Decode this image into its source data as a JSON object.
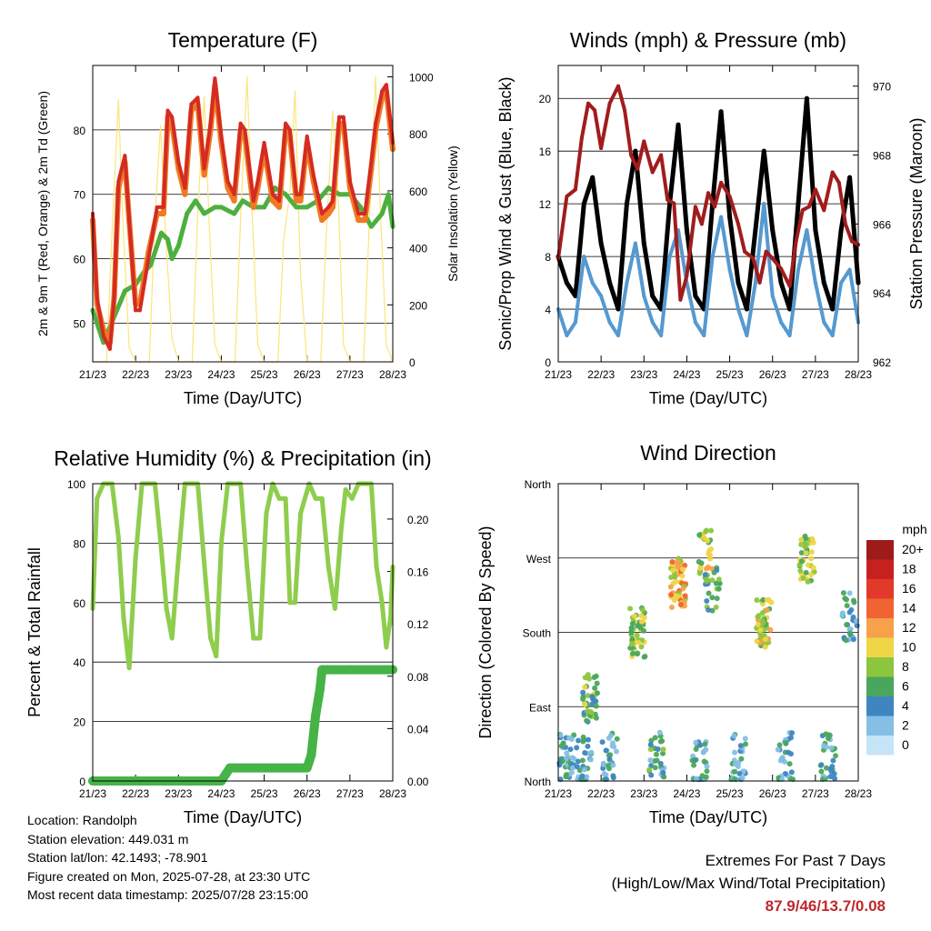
{
  "colors": {
    "temp_2m": "#d42b23",
    "temp_9m": "#f07a22",
    "dewpoint": "#4daf3e",
    "solar": "#fbe57a",
    "wind_sonic": "#5599d0",
    "gust": "#000000",
    "pressure": "#a11c1c",
    "rh": "#8fcd4d",
    "precip": "#46b346",
    "extremes_value": "#c0282d"
  },
  "chart_data": [
    {
      "type": "line",
      "title": "Temperature (F)",
      "xlabel": "Time (Day/UTC)",
      "ylabel": "2m & 9m T (Red, Orange) & 2m Td (Green)",
      "y2label": "Solar Insolation (Yellow)",
      "x_ticks": [
        "21/23",
        "22/23",
        "23/23",
        "24/23",
        "25/23",
        "26/23",
        "27/23",
        "28/23"
      ],
      "ylim": [
        44,
        90
      ],
      "y_ticks": [
        50,
        60,
        70,
        80
      ],
      "y2lim": [
        0,
        1040
      ],
      "y2_ticks": [
        0,
        200,
        400,
        600,
        800,
        1000
      ],
      "grid": "horizontal",
      "series": [
        {
          "key": "temp_2m",
          "color": "#d42b23",
          "x": [
            0,
            0.1,
            0.25,
            0.4,
            0.5,
            0.6,
            0.75,
            0.85,
            1.0,
            1.1,
            1.3,
            1.5,
            1.65,
            1.75,
            1.85,
            2.0,
            2.15,
            2.3,
            2.45,
            2.6,
            2.75,
            2.85,
            3.0,
            3.15,
            3.3,
            3.45,
            3.55,
            3.75,
            3.85,
            4.0,
            4.2,
            4.35,
            4.5,
            4.6,
            4.75,
            4.85,
            5.0,
            5.15,
            5.35,
            5.5,
            5.6,
            5.75,
            5.85,
            6.0,
            6.2,
            6.35,
            6.5,
            6.6,
            6.75,
            6.85,
            7.0
          ],
          "y": [
            67,
            54,
            48,
            46,
            54,
            72,
            76,
            66,
            52,
            52,
            60,
            68,
            68,
            83,
            82,
            75,
            71,
            84,
            85,
            74,
            81,
            88,
            79,
            72,
            70,
            81,
            80,
            69,
            72,
            78,
            70,
            69,
            81,
            80,
            70,
            70,
            79,
            73,
            67,
            68,
            69,
            82,
            82,
            72,
            67,
            67,
            75,
            81,
            86,
            87,
            78
          ]
        },
        {
          "key": "temp_9m",
          "color": "#f07a22",
          "x": [
            0,
            0.1,
            0.25,
            0.4,
            0.5,
            0.6,
            0.75,
            0.85,
            1.0,
            1.1,
            1.3,
            1.5,
            1.65,
            1.75,
            1.85,
            2.0,
            2.15,
            2.3,
            2.45,
            2.6,
            2.75,
            2.85,
            3.0,
            3.15,
            3.3,
            3.45,
            3.55,
            3.75,
            3.85,
            4.0,
            4.2,
            4.35,
            4.5,
            4.6,
            4.75,
            4.85,
            5.0,
            5.15,
            5.35,
            5.5,
            5.6,
            5.75,
            5.85,
            6.0,
            6.2,
            6.35,
            6.5,
            6.6,
            6.75,
            6.85,
            7.0
          ],
          "y": [
            66,
            53,
            49,
            47,
            54,
            71,
            75,
            66,
            53,
            53,
            61,
            67,
            67,
            82,
            81,
            74,
            70,
            83,
            84,
            73,
            80,
            87,
            78,
            71,
            69,
            80,
            79,
            68,
            71,
            77,
            69,
            68,
            80,
            79,
            69,
            69,
            78,
            72,
            66,
            67,
            68,
            81,
            81,
            71,
            66,
            66,
            74,
            80,
            85,
            86,
            77
          ]
        },
        {
          "key": "dewpoint",
          "color": "#4daf3e",
          "x": [
            0,
            0.25,
            0.5,
            0.75,
            1.0,
            1.2,
            1.35,
            1.6,
            1.75,
            1.85,
            2.0,
            2.2,
            2.4,
            2.6,
            2.85,
            3.0,
            3.3,
            3.5,
            3.75,
            4.0,
            4.25,
            4.5,
            4.75,
            5.0,
            5.25,
            5.5,
            5.75,
            6.0,
            6.25,
            6.5,
            6.75,
            6.9,
            7.0
          ],
          "y": [
            52,
            47,
            51,
            55,
            56,
            58,
            59,
            64,
            63,
            60,
            62,
            67,
            69,
            67,
            68,
            68,
            67,
            69,
            68,
            68,
            71,
            70,
            68,
            68,
            69,
            71,
            70,
            70,
            68,
            65,
            67,
            70,
            65
          ]
        },
        {
          "key": "solar",
          "color": "#fbe57a",
          "axis": "y2",
          "x": [
            0,
            0.32,
            0.45,
            0.6,
            0.7,
            0.85,
            1.0,
            1.32,
            1.45,
            1.58,
            1.7,
            1.85,
            2.0,
            2.32,
            2.45,
            2.6,
            2.72,
            2.85,
            3.0,
            3.32,
            3.45,
            3.6,
            3.72,
            3.85,
            4.0,
            4.32,
            4.45,
            4.6,
            4.72,
            4.85,
            5.0,
            5.32,
            5.45,
            5.6,
            5.72,
            5.85,
            6.0,
            6.32,
            6.45,
            6.6,
            6.72,
            6.85,
            7.0
          ],
          "y": [
            0,
            0,
            450,
            920,
            500,
            50,
            0,
            0,
            500,
            830,
            450,
            80,
            0,
            0,
            520,
            930,
            480,
            60,
            0,
            0,
            500,
            1000,
            520,
            60,
            0,
            0,
            420,
            600,
            950,
            300,
            0,
            0,
            450,
            880,
            600,
            60,
            0,
            0,
            480,
            1000,
            500,
            60,
            0
          ]
        }
      ]
    },
    {
      "type": "line",
      "title": "Winds (mph) & Pressure (mb)",
      "xlabel": "Time (Day/UTC)",
      "ylabel": "Sonic/Prop Wind & Gust (Blue, Black)",
      "y2label": "Station Pressure (Maroon)",
      "x_ticks": [
        "21/23",
        "22/23",
        "23/23",
        "24/23",
        "25/23",
        "26/23",
        "27/23",
        "28/23"
      ],
      "ylim": [
        0,
        22.5
      ],
      "y_ticks": [
        0,
        4,
        8,
        12,
        16,
        20
      ],
      "y2lim": [
        962,
        970.6
      ],
      "y2_ticks": [
        962,
        964,
        966,
        968,
        970
      ],
      "grid": "horizontal",
      "series": [
        {
          "key": "wind_sonic",
          "color": "#5599d0",
          "x": [
            0,
            0.2,
            0.4,
            0.6,
            0.8,
            1.0,
            1.2,
            1.4,
            1.6,
            1.8,
            2.0,
            2.2,
            2.4,
            2.6,
            2.8,
            3.0,
            3.2,
            3.4,
            3.6,
            3.8,
            4.0,
            4.2,
            4.4,
            4.6,
            4.8,
            5.0,
            5.2,
            5.4,
            5.6,
            5.8,
            6.0,
            6.2,
            6.4,
            6.6,
            6.8,
            7.0
          ],
          "y": [
            4,
            2,
            3,
            8,
            6,
            5,
            3,
            2,
            6,
            9,
            5,
            3,
            2,
            8,
            10,
            6,
            3,
            2,
            8,
            11,
            7,
            4,
            2,
            6,
            12,
            5,
            3,
            2,
            7,
            10,
            6,
            3,
            2,
            6,
            7,
            3
          ]
        },
        {
          "key": "gust",
          "color": "#000000",
          "x": [
            0,
            0.2,
            0.4,
            0.6,
            0.8,
            1.0,
            1.2,
            1.4,
            1.6,
            1.8,
            2.0,
            2.2,
            2.4,
            2.6,
            2.8,
            3.0,
            3.2,
            3.4,
            3.6,
            3.8,
            4.0,
            4.2,
            4.4,
            4.6,
            4.8,
            5.0,
            5.2,
            5.4,
            5.6,
            5.8,
            6.0,
            6.2,
            6.4,
            6.6,
            6.8,
            7.0
          ],
          "y": [
            8,
            6,
            5,
            12,
            14,
            9,
            6,
            4,
            12,
            16,
            9,
            5,
            4,
            12,
            18,
            10,
            5,
            4,
            12,
            19,
            11,
            6,
            4,
            10,
            16,
            10,
            6,
            4,
            12,
            20,
            10,
            6,
            4,
            10,
            14,
            6
          ]
        },
        {
          "key": "pressure",
          "color": "#a11c1c",
          "axis": "y2",
          "x": [
            0,
            0.2,
            0.4,
            0.55,
            0.7,
            0.85,
            1.0,
            1.2,
            1.4,
            1.55,
            1.7,
            1.85,
            2.0,
            2.2,
            2.4,
            2.55,
            2.7,
            2.85,
            3.0,
            3.2,
            3.35,
            3.5,
            3.65,
            3.8,
            4.0,
            4.2,
            4.35,
            4.55,
            4.7,
            4.85,
            5.0,
            5.2,
            5.4,
            5.55,
            5.7,
            5.85,
            6.0,
            6.2,
            6.4,
            6.55,
            6.7,
            6.85,
            7.0
          ],
          "y": [
            965,
            966.8,
            967,
            968.5,
            969.5,
            969.3,
            968.2,
            969.5,
            970,
            969.3,
            968,
            967.6,
            968.4,
            967.5,
            968,
            966.7,
            966.6,
            963.8,
            964.5,
            966.5,
            966,
            966.9,
            966.5,
            967.2,
            966.8,
            966,
            965.2,
            965,
            964.3,
            965.2,
            965,
            964.7,
            964.2,
            965.5,
            966.4,
            966.5,
            967,
            966.4,
            967.5,
            967.2,
            966,
            965.5,
            965.4
          ]
        }
      ]
    },
    {
      "type": "line",
      "title": "Relative Humidity (%) & Precipitation (in)",
      "xlabel": "Time (Day/UTC)",
      "ylabel": "Percent & Total Rainfall",
      "x_ticks": [
        "21/23",
        "22/23",
        "23/23",
        "24/23",
        "25/23",
        "26/23",
        "27/23",
        "28/23"
      ],
      "ylim": [
        0,
        100
      ],
      "y_ticks": [
        0,
        20,
        40,
        60,
        80,
        100
      ],
      "y2lim": [
        0,
        0.227
      ],
      "y2_ticks": [
        "0.00",
        "0.04",
        "0.08",
        "0.12",
        "0.16",
        "0.20"
      ],
      "grid": "horizontal",
      "series": [
        {
          "key": "rh",
          "color": "#8fcd4d",
          "x": [
            0,
            0.1,
            0.25,
            0.45,
            0.6,
            0.72,
            0.85,
            1.0,
            1.15,
            1.3,
            1.45,
            1.6,
            1.72,
            1.85,
            2.0,
            2.15,
            2.3,
            2.45,
            2.62,
            2.75,
            2.88,
            3.0,
            3.15,
            3.3,
            3.45,
            3.6,
            3.75,
            3.9,
            4.05,
            4.2,
            4.35,
            4.5,
            4.6,
            4.72,
            4.85,
            5.05,
            5.2,
            5.35,
            5.5,
            5.65,
            5.8,
            5.9,
            6.05,
            6.2,
            6.35,
            6.5,
            6.62,
            6.75,
            6.85,
            6.95,
            7.0
          ],
          "y": [
            58,
            95,
            100,
            100,
            82,
            55,
            38,
            75,
            100,
            100,
            100,
            78,
            58,
            48,
            75,
            100,
            100,
            100,
            70,
            48,
            42,
            80,
            100,
            100,
            100,
            72,
            48,
            48,
            90,
            100,
            95,
            95,
            60,
            60,
            90,
            100,
            95,
            95,
            72,
            58,
            85,
            98,
            95,
            100,
            100,
            100,
            72,
            60,
            45,
            55,
            72
          ]
        },
        {
          "key": "precip",
          "color": "#46b346",
          "axis": "y2",
          "x": [
            0,
            1.0,
            2.0,
            3.0,
            3.1,
            3.2,
            4.0,
            5.0,
            5.05,
            5.1,
            5.2,
            5.3,
            5.35,
            5.5,
            6.0,
            7.0
          ],
          "y": [
            0,
            0,
            0,
            0,
            0.005,
            0.01,
            0.01,
            0.01,
            0.015,
            0.02,
            0.05,
            0.07,
            0.085,
            0.085,
            0.085,
            0.085
          ]
        }
      ]
    },
    {
      "type": "scatter",
      "title": "Wind Direction",
      "xlabel": "Time (Day/UTC)",
      "ylabel": "Direction (Colored By Speed)",
      "x_ticks": [
        "21/23",
        "22/23",
        "23/23",
        "24/23",
        "25/23",
        "26/23",
        "27/23",
        "28/23"
      ],
      "ylim": [
        0,
        360
      ],
      "y_ticks": [
        {
          "label": "North",
          "value": 0
        },
        {
          "label": "East",
          "value": 90
        },
        {
          "label": "South",
          "value": 180
        },
        {
          "label": "West",
          "value": 270
        },
        {
          "label": "North",
          "value": 360
        }
      ],
      "grid": "horizontal",
      "colorbar": {
        "title": "mph",
        "labels": [
          "20+",
          "18",
          "16",
          "14",
          "12",
          "10",
          "8",
          "6",
          "4",
          "2",
          "0"
        ],
        "colors": [
          "#9e1b1b",
          "#c7211f",
          "#e2392b",
          "#f06433",
          "#f7a14a",
          "#f0d547",
          "#8cc63f",
          "#4aa65c",
          "#3f86c0",
          "#85bfe6",
          "#c6e4f7"
        ]
      },
      "clusters": [
        {
          "x": 0.2,
          "dir": 30,
          "speed": 4,
          "n": 40
        },
        {
          "x": 0.6,
          "dir": 25,
          "speed": 4,
          "n": 30
        },
        {
          "x": 0.75,
          "dir": 100,
          "speed": 7,
          "n": 40
        },
        {
          "x": 1.2,
          "dir": 30,
          "speed": 4,
          "n": 30
        },
        {
          "x": 1.85,
          "dir": 180,
          "speed": 8,
          "n": 50
        },
        {
          "x": 2.3,
          "dir": 30,
          "speed": 5,
          "n": 30
        },
        {
          "x": 2.8,
          "dir": 240,
          "speed": 11,
          "n": 60
        },
        {
          "x": 3.3,
          "dir": 20,
          "speed": 4,
          "n": 30
        },
        {
          "x": 3.45,
          "dir": 275,
          "speed": 9,
          "n": 30
        },
        {
          "x": 3.6,
          "dir": 230,
          "speed": 6,
          "n": 25
        },
        {
          "x": 4.2,
          "dir": 30,
          "speed": 4,
          "n": 30
        },
        {
          "x": 4.8,
          "dir": 190,
          "speed": 9,
          "n": 50
        },
        {
          "x": 5.3,
          "dir": 30,
          "speed": 4,
          "n": 30
        },
        {
          "x": 5.8,
          "dir": 270,
          "speed": 8,
          "n": 40
        },
        {
          "x": 6.3,
          "dir": 30,
          "speed": 4,
          "n": 30
        },
        {
          "x": 6.8,
          "dir": 200,
          "speed": 4,
          "n": 30
        }
      ]
    }
  ],
  "info": {
    "location": "Location: Randolph",
    "elevation": "Station elevation: 449.031 m",
    "latlon": "Station lat/lon: 42.1493; -78.901",
    "created": "Figure created on Mon, 2025-07-28, at 23:30 UTC",
    "recent": "Most recent data timestamp: 2025/07/28 23:15:00"
  },
  "extremes": {
    "title": "Extremes For Past 7 Days",
    "subtitle": "(High/Low/Max Wind/Total Precipitation)",
    "value": "87.9/46/13.7/0.08"
  }
}
